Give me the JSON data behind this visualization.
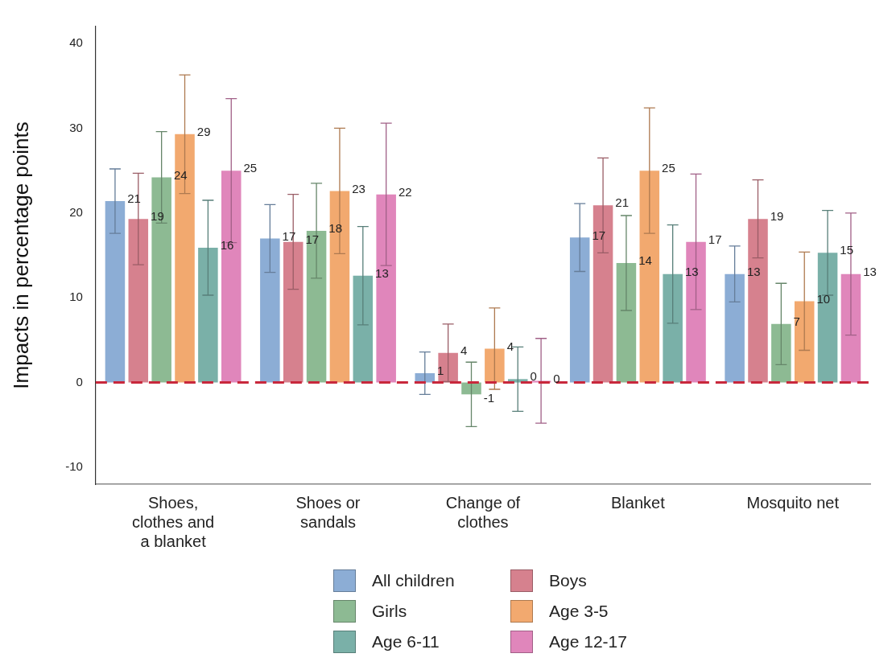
{
  "chart_data": {
    "type": "bar",
    "ylabel": "Impacts in percentage points",
    "categories": [
      "Shoes, clothes and a blanket",
      "Shoes or sandals",
      "Change of clothes",
      "Blanket",
      "Mosquito net"
    ],
    "series": [
      {
        "name": "All children",
        "color": "#8cadd5",
        "values": [
          21.4,
          17.0,
          1.1,
          17.1,
          12.8
        ],
        "errors": [
          3.8,
          4.0,
          2.5,
          4.0,
          3.3
        ],
        "value_labels": [
          "21",
          "17",
          "1",
          "17",
          "13"
        ]
      },
      {
        "name": "Boys",
        "color": "#d6818e",
        "values": [
          19.3,
          16.6,
          3.5,
          20.9,
          19.3
        ],
        "errors": [
          5.4,
          5.6,
          3.4,
          5.6,
          4.6
        ],
        "value_labels": [
          "19",
          "17",
          "4",
          "21",
          "19"
        ]
      },
      {
        "name": "Girls",
        "color": "#8dba93",
        "values": [
          24.2,
          17.9,
          -1.4,
          14.1,
          6.9
        ],
        "errors": [
          5.4,
          5.6,
          3.8,
          5.6,
          4.8
        ],
        "value_labels": [
          "24",
          "18",
          "-1",
          "14",
          "7"
        ]
      },
      {
        "name": "Age 3-5",
        "color": "#f2a96f",
        "values": [
          29.3,
          22.6,
          4.0,
          25.0,
          9.6
        ],
        "errors": [
          7.0,
          7.4,
          4.8,
          7.4,
          5.8
        ],
        "value_labels": [
          "29",
          "23",
          "4",
          "25",
          "10"
        ]
      },
      {
        "name": "Age 6-11",
        "color": "#7ab0a8",
        "values": [
          15.9,
          12.6,
          0.4,
          12.8,
          15.3
        ],
        "errors": [
          5.6,
          5.8,
          3.8,
          5.8,
          5.0
        ],
        "value_labels": [
          "16",
          "13",
          "0",
          "13",
          "15"
        ]
      },
      {
        "name": "Age 12-17",
        "color": "#e086bb",
        "values": [
          25.0,
          22.2,
          0.2,
          16.6,
          12.8
        ],
        "errors": [
          8.5,
          8.4,
          5.0,
          8.0,
          7.2
        ],
        "value_labels": [
          "25",
          "22",
          "0",
          "17",
          "13"
        ]
      }
    ],
    "ylim": [
      -12,
      42
    ],
    "yticks": [
      -10,
      0,
      10,
      20,
      30,
      40
    ],
    "grid": false,
    "legend": "bottom",
    "ref_lines": [
      {
        "axis": "y",
        "value": 0,
        "color": "#c8283c",
        "line_style": "dashed"
      }
    ]
  }
}
